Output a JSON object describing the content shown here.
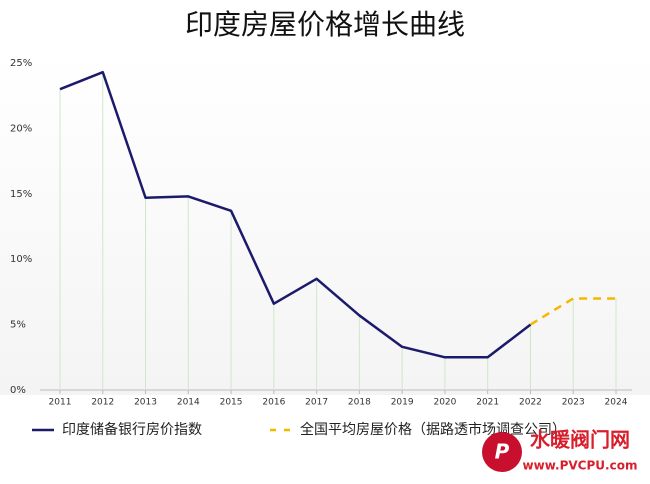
{
  "chart_data": {
    "type": "line",
    "title": "印度房屋价格增长曲线",
    "categories": [
      "2011",
      "2012",
      "2013",
      "2014",
      "2015",
      "2016",
      "2017",
      "2018",
      "2019",
      "2020",
      "2021",
      "2022",
      "2023",
      "2024"
    ],
    "series": [
      {
        "name": "印度储备银行房价指数",
        "color": "#1c1a6b",
        "dashed": false,
        "values": [
          23.0,
          24.3,
          14.7,
          14.8,
          13.7,
          6.6,
          8.5,
          5.7,
          3.3,
          2.5,
          2.5,
          5.0,
          null,
          null
        ]
      },
      {
        "name": "全国平均房屋价格（据路透市场调查公司）",
        "color": "#f5b800",
        "dashed": true,
        "values": [
          null,
          null,
          null,
          null,
          null,
          null,
          null,
          null,
          null,
          null,
          null,
          5.0,
          7.0,
          7.0
        ]
      }
    ],
    "ylim": [
      0,
      25
    ],
    "yticks": [
      {
        "value": 0,
        "label": "0%"
      },
      {
        "value": 5,
        "label": "5%"
      },
      {
        "value": 10,
        "label": "10%"
      },
      {
        "value": 15,
        "label": "15%"
      },
      {
        "value": 20,
        "label": "20%"
      },
      {
        "value": 25,
        "label": "25%"
      }
    ],
    "drop_lines": true,
    "legend": "bottom"
  },
  "watermark": {
    "name": "水暖阀门网",
    "url": "www.PVCPU.com"
  }
}
